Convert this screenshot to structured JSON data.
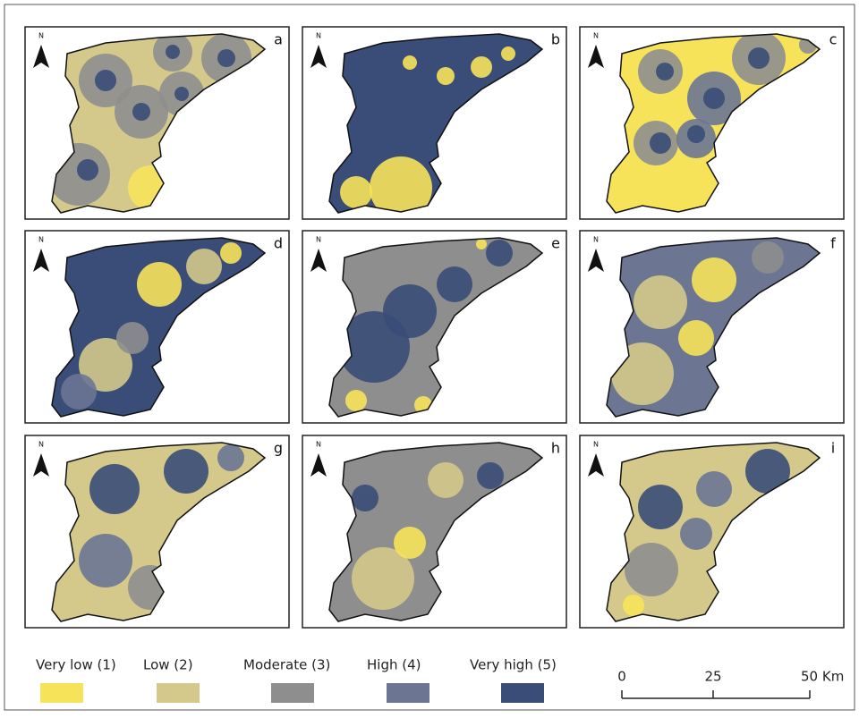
{
  "panels": [
    {
      "letter": "a",
      "north": "N"
    },
    {
      "letter": "b",
      "north": "N"
    },
    {
      "letter": "c",
      "north": "N"
    },
    {
      "letter": "d",
      "north": "N"
    },
    {
      "letter": "e",
      "north": "N"
    },
    {
      "letter": "f",
      "north": "N"
    },
    {
      "letter": "g",
      "north": "N"
    },
    {
      "letter": "h",
      "north": "N"
    },
    {
      "letter": "i",
      "north": "N"
    }
  ],
  "legend": [
    {
      "label": "Very low (1)",
      "color": "#f7e35a"
    },
    {
      "label": "Low (2)",
      "color": "#d4c98a"
    },
    {
      "label": "Moderate (3)",
      "color": "#8e8e8e"
    },
    {
      "label": "High (4)",
      "color": "#6c7693"
    },
    {
      "label": "Very high  (5)",
      "color": "#3a4c78"
    }
  ],
  "scale_bar": {
    "labels": [
      "0",
      "25",
      "50 Km"
    ]
  }
}
